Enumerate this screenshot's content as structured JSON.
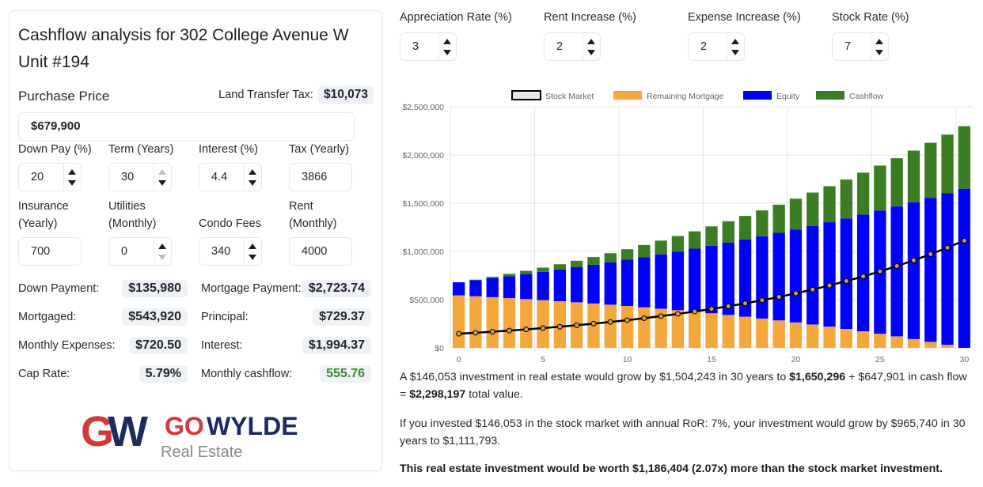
{
  "title": "Cashflow analysis for 302 College Avenue W Unit #194",
  "purchase": {
    "label": "Purchase Price",
    "value": "$679,900",
    "land_transfer_label": "Land Transfer Tax:",
    "land_transfer_value": "$10,073"
  },
  "fields": [
    {
      "label": "Down Pay (%)",
      "value": "20",
      "spinner": true,
      "up_disabled": false,
      "down_disabled": false
    },
    {
      "label": "Term (Years)",
      "value": "30",
      "spinner": true,
      "up_disabled": true,
      "down_disabled": false
    },
    {
      "label": "Interest (%)",
      "value": "4.4",
      "spinner": true,
      "up_disabled": false,
      "down_disabled": false
    },
    {
      "label": "Tax (Yearly)",
      "value": "3866",
      "spinner": false
    },
    {
      "label": "Insurance (Yearly)",
      "value": "700",
      "spinner": false
    },
    {
      "label": "Utilities (Monthly)",
      "value": "0",
      "spinner": true,
      "up_disabled": false,
      "down_disabled": true
    },
    {
      "label": "Condo Fees",
      "value": "340",
      "spinner": true,
      "up_disabled": false,
      "down_disabled": false
    },
    {
      "label": "Rent (Monthly)",
      "value": "4000",
      "spinner": false
    }
  ],
  "stats_left": [
    {
      "label": "Down Payment:",
      "value": "$135,980"
    },
    {
      "label": "Mortgaged:",
      "value": "$543,920"
    },
    {
      "label": "Monthly Expenses:",
      "value": "$720.50"
    },
    {
      "label": "Cap Rate:",
      "value": "5.79%"
    }
  ],
  "stats_right": [
    {
      "label": "Mortgage Payment:",
      "value": "$2,723.74"
    },
    {
      "label": "Principal:",
      "value": "$729.37"
    },
    {
      "label": "Interest:",
      "value": "$1,994.37"
    },
    {
      "label": "Monthly cashflow:",
      "value": "555.76"
    }
  ],
  "logo": {
    "mark": "GW",
    "brand_go": "GO",
    "brand_wylde": "WYLDE",
    "tagline": "Real Estate",
    "red": "#d23a3a",
    "navy": "#1d2a5e",
    "gray": "#8a8a8a"
  },
  "rates": [
    {
      "label": "Appreciation Rate (%)",
      "value": "3"
    },
    {
      "label": "Rent Increase (%)",
      "value": "2"
    },
    {
      "label": "Expense Increase (%)",
      "value": "2"
    },
    {
      "label": "Stock Rate (%)",
      "value": "7"
    }
  ],
  "chart_data": {
    "type": "bar",
    "stacked": true,
    "title": "",
    "xlabel": "",
    "ylabel": "",
    "ylim": [
      0,
      2500000
    ],
    "yticks": [
      "$0",
      "$500,000",
      "$1,000,000",
      "$1,500,000",
      "$2,000,000",
      "$2,500,000"
    ],
    "ytick_values": [
      0,
      500000,
      1000000,
      1500000,
      2000000,
      2500000
    ],
    "xticks": [
      "0",
      "5",
      "10",
      "15",
      "20",
      "25",
      "30"
    ],
    "xtick_values": [
      0,
      5,
      10,
      15,
      20,
      25,
      30
    ],
    "grid": true,
    "legend_position": "top",
    "x": [
      0,
      1,
      2,
      3,
      4,
      5,
      6,
      7,
      8,
      9,
      10,
      11,
      12,
      13,
      14,
      15,
      16,
      17,
      18,
      19,
      20,
      21,
      22,
      23,
      24,
      25,
      26,
      27,
      28,
      29,
      30
    ],
    "series": [
      {
        "name": "Stock Market",
        "type": "line",
        "color": "#000000",
        "fill": "#e6e6e6",
        "values": [
          146053,
          156277,
          167216,
          178921,
          191445,
          204846,
          219186,
          234529,
          250946,
          268512,
          287307,
          307419,
          328938,
          351964,
          376601,
          402963,
          431171,
          461353,
          493647,
          528203,
          565177,
          604739,
          647071,
          692366,
          740832,
          792690,
          848178,
          907551,
          971079,
          1039055,
          1111793
        ]
      },
      {
        "name": "Remaining Mortgage",
        "type": "bar",
        "color": "#f4a83c",
        "values": [
          543920,
          534982,
          525646,
          515889,
          505693,
          495040,
          483910,
          472279,
          460125,
          447425,
          434155,
          420289,
          405802,
          390665,
          374848,
          358321,
          341052,
          323008,
          304154,
          284454,
          263870,
          242361,
          219886,
          196403,
          171866,
          146227,
          119437,
          91445,
          62196,
          31634,
          0
        ]
      },
      {
        "name": "Equity",
        "type": "bar",
        "color": "#0000ff",
        "values": [
          135980,
          165315,
          195660,
          227056,
          259541,
          293151,
          327927,
          363913,
          401153,
          439692,
          479575,
          520853,
          563574,
          607793,
          653563,
          700943,
          749989,
          800765,
          853332,
          907757,
          964107,
          1022456,
          1082875,
          1145441,
          1210234,
          1277336,
          1346833,
          1418813,
          1493370,
          1570599,
          1650296
        ]
      },
      {
        "name": "Cashflow",
        "type": "bar",
        "color": "#3a7d23",
        "values": [
          0,
          7015,
          14857,
          23544,
          33092,
          43519,
          54841,
          67077,
          80246,
          94366,
          109455,
          125533,
          142619,
          160734,
          179899,
          200135,
          221462,
          243903,
          267480,
          292216,
          318134,
          345258,
          373612,
          403220,
          434107,
          466300,
          499823,
          534704,
          570969,
          608646,
          647901
        ]
      }
    ]
  },
  "summary": {
    "p1_a": "A $146,053 investment in real estate would grow by $1,504,243 in 30 years to ",
    "p1_b": "$1,650,296",
    "p1_c": " + $647,901 in cash flow = ",
    "p1_d": "$2,298,197",
    "p1_e": " total value.",
    "p2": "If you invested $146,053 in the stock market with annual RoR: 7%, your investment would grow by $965,740 in 30 years to $1,111,793.",
    "p3": "This real estate investment would be worth $1,186,404 (2.07x) more than the stock market investment."
  }
}
